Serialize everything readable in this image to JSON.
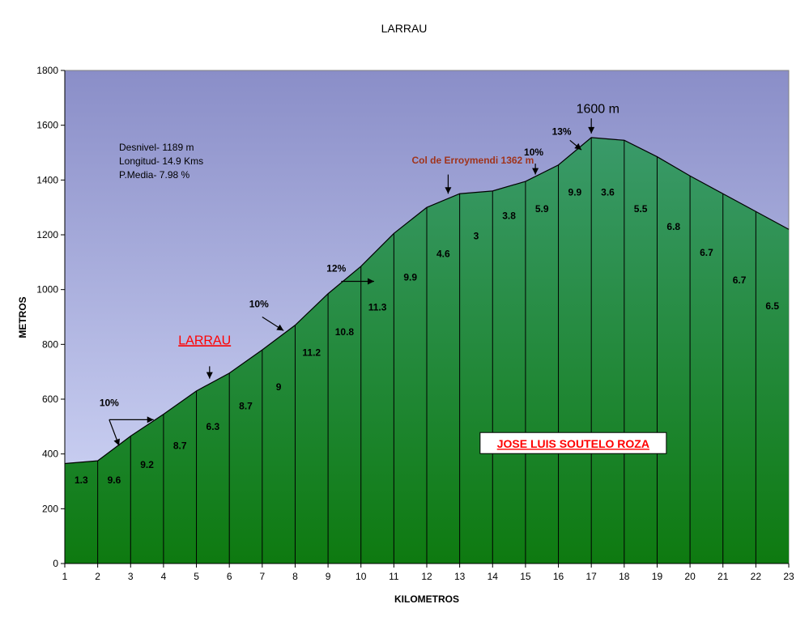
{
  "chart_data": {
    "type": "area",
    "title": "LARRAU",
    "xlabel": "KILOMETROS",
    "ylabel": "METROS",
    "xlim": [
      1,
      23
    ],
    "ylim": [
      0,
      1800
    ],
    "x_ticks": [
      "1",
      "2",
      "3",
      "4",
      "5",
      "6",
      "7",
      "8",
      "9",
      "10",
      "11",
      "12",
      "13",
      "14",
      "15",
      "16",
      "17",
      "18",
      "19",
      "20",
      "21",
      "22",
      "23"
    ],
    "y_ticks": [
      "0",
      "200",
      "400",
      "600",
      "800",
      "1000",
      "1200",
      "1400",
      "1600",
      "1800"
    ],
    "grid": false,
    "x": [
      1,
      2,
      3,
      4,
      5,
      6,
      7,
      8,
      9,
      10,
      11,
      12,
      13,
      14,
      15,
      16,
      17,
      18,
      19,
      20,
      21,
      22,
      23
    ],
    "values": [
      365,
      375,
      465,
      545,
      630,
      695,
      780,
      870,
      985,
      1085,
      1205,
      1300,
      1350,
      1360,
      1395,
      1455,
      1555,
      1545,
      1485,
      1415,
      1350,
      1285,
      1220
    ],
    "segment_grades": [
      "1.3",
      "9.6",
      "9.2",
      "8.7",
      "6.3",
      "8.7",
      "9",
      "11.2",
      "10.8",
      "11.3",
      "9.9",
      "4.6",
      "3",
      "3.8",
      "5.9",
      "9.9",
      "3.6",
      "5.5",
      "6.8",
      "6.7",
      "6.7",
      "6.5"
    ],
    "segment_label_y": [
      305,
      305,
      360,
      430,
      500,
      575,
      645,
      770,
      845,
      935,
      1045,
      1130,
      1195,
      1270,
      1295,
      1355,
      1355,
      1295,
      1230,
      1135,
      1035,
      940
    ],
    "stats": [
      "Desnivel- 1189 m",
      "Longitud- 14.9 Kms",
      "P.Media- 7.98 %"
    ],
    "annotations": [
      {
        "text": "10%",
        "x": 2.35,
        "y": 575
      },
      {
        "text": "10%",
        "x": 6.9,
        "y": 935
      },
      {
        "text": "12%",
        "x": 9.25,
        "y": 1065
      },
      {
        "text": "10%",
        "x": 15.25,
        "y": 1490
      },
      {
        "text": "13%",
        "x": 16.1,
        "y": 1565
      },
      {
        "text": "Col de Erroymendi 1362 m",
        "x": 13.4,
        "y": 1460
      },
      {
        "text": "LARRAU",
        "x": 5.25,
        "y": 800
      },
      {
        "text": "1600 m",
        "x": 17.2,
        "y": 1645
      },
      {
        "text": "JOSE LUIS SOUTELO ROZA",
        "x": 16.45,
        "y": 422
      }
    ],
    "colors": {
      "sky_top": "#8a8ec8",
      "sky_bottom": "#d6dcfa",
      "fill_top": "#3a9a6a",
      "fill_bottom": "#0e7a10",
      "title_color": "#000000",
      "col_color": "#a0341c",
      "larrau_color": "#ff0000",
      "author_color": "#ff0000"
    }
  }
}
